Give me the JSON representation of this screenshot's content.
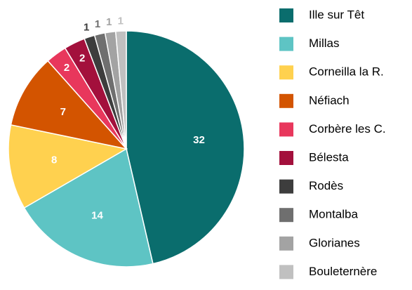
{
  "chart_data": {
    "type": "pie",
    "categories": [
      "Ille sur Têt",
      "Millas",
      "Corneilla la R.",
      "Néfiach",
      "Corbère les C.",
      "Bélesta",
      "Rodès",
      "Montalba",
      "Glorianes",
      "Bouleternère"
    ],
    "values": [
      32,
      14,
      8,
      7,
      2,
      2,
      1,
      1,
      1,
      1
    ],
    "colors": [
      "#0a6d6d",
      "#5ec4c4",
      "#ffd14f",
      "#d35400",
      "#e8375c",
      "#a3103c",
      "#3d3d3d",
      "#6f6f6f",
      "#a3a3a3",
      "#c0c0c0"
    ]
  }
}
